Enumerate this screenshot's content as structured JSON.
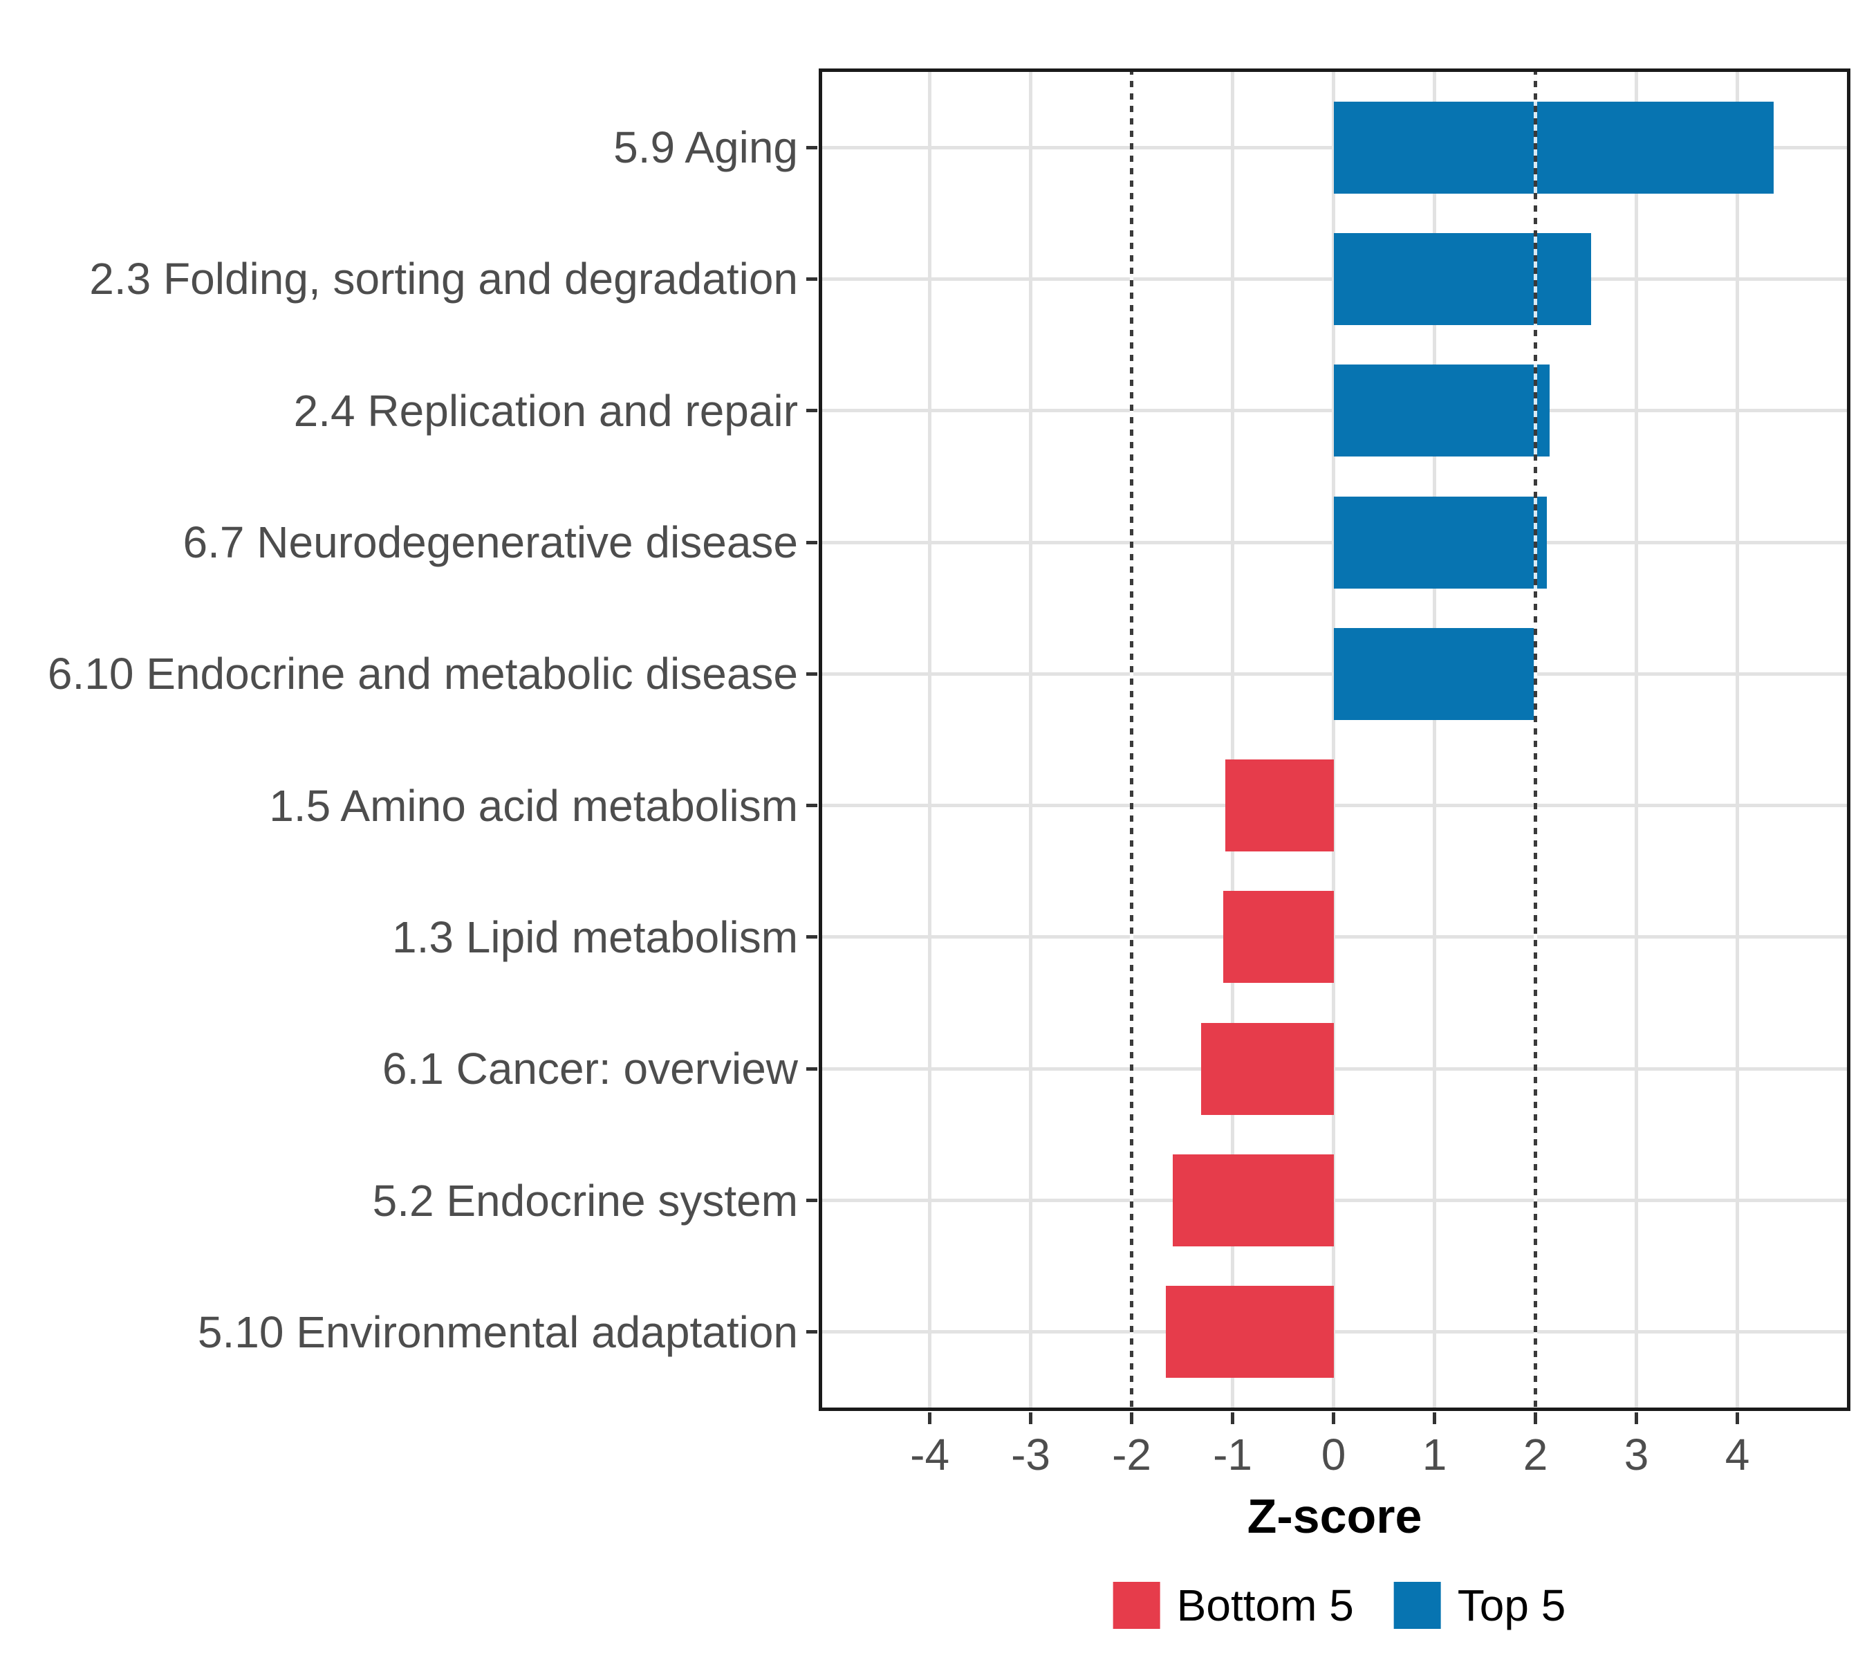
{
  "chart_data": {
    "type": "bar",
    "orientation": "horizontal",
    "title": "",
    "xlabel": "Z-score",
    "ylabel": "",
    "categories": [
      {
        "label": "5.9 Aging",
        "value": 4.36,
        "group": "Top 5"
      },
      {
        "label": "2.3 Folding, sorting and degradation",
        "value": 2.55,
        "group": "Top 5"
      },
      {
        "label": "2.4 Replication and repair",
        "value": 2.14,
        "group": "Top 5"
      },
      {
        "label": "6.7 Neurodegenerative disease",
        "value": 2.11,
        "group": "Top 5"
      },
      {
        "label": "6.10 Endocrine and metabolic disease",
        "value": 1.99,
        "group": "Top 5"
      },
      {
        "label": "1.5 Amino acid metabolism",
        "value": -1.07,
        "group": "Bottom 5"
      },
      {
        "label": "1.3 Lipid metabolism",
        "value": -1.09,
        "group": "Bottom 5"
      },
      {
        "label": "6.1 Cancer: overview",
        "value": -1.31,
        "group": "Bottom 5"
      },
      {
        "label": "5.2 Endocrine system",
        "value": -1.59,
        "group": "Bottom 5"
      },
      {
        "label": "5.10 Environmental adaptation",
        "value": -1.66,
        "group": "Bottom 5"
      }
    ],
    "x_ticks": [
      "-4",
      "-3",
      "-2",
      "-1",
      "0",
      "1",
      "2",
      "3",
      "4"
    ],
    "x_tick_values": [
      -4,
      -3,
      -2,
      -1,
      0,
      1,
      2,
      3,
      4
    ],
    "xlim": [
      -5.1,
      5.12
    ],
    "reference_lines": [
      -2,
      2
    ],
    "grid": "major-only",
    "legend_position": "bottom",
    "legend": [
      {
        "label": "Bottom 5",
        "color": "#E63C4B"
      },
      {
        "label": "Top 5",
        "color": "#0774B1"
      }
    ],
    "series_colors": {
      "Bottom 5": "#E63C4B",
      "Top 5": "#0774B1"
    }
  },
  "style_colors": {
    "gridline": "#E2E2E2",
    "axis_text": "#4D4D4D",
    "panel_border": "#1A1A1A",
    "reference_line": "#3A3A3A",
    "background": "#FFFFFF"
  }
}
